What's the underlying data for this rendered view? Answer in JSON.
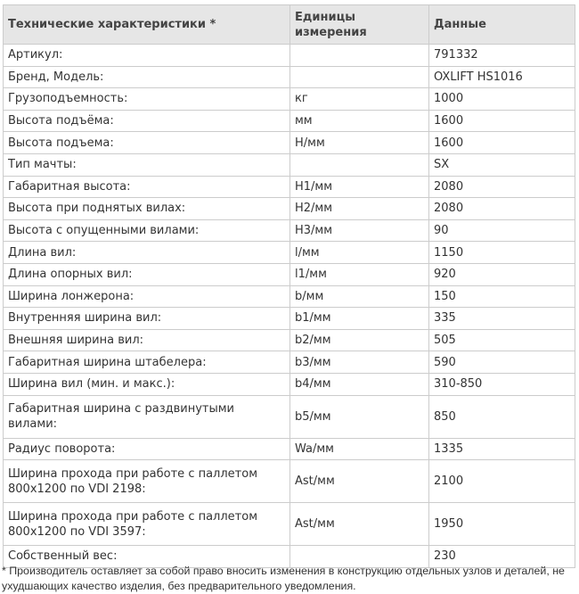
{
  "table": {
    "headers": [
      "Технические характеристики *",
      "Единицы измерения",
      "Данные"
    ],
    "rows": [
      {
        "name": "Артикул:",
        "unit": "",
        "value": "791332"
      },
      {
        "name": "Бренд, Модель:",
        "unit": "",
        "value": "OXLIFT HS1016"
      },
      {
        "name": "Грузоподъемность:",
        "unit": "кг",
        "value": "1000"
      },
      {
        "name": "Высота подъёма:",
        "unit": "мм",
        "value": "1600"
      },
      {
        "name": "Высота подъема:",
        "unit": "H/мм",
        "value": "1600"
      },
      {
        "name": "Тип мачты:",
        "unit": "",
        "value": "SX"
      },
      {
        "name": "Габаритная высота:",
        "unit": "H1/мм",
        "value": "2080"
      },
      {
        "name": "Высота при поднятых вилах:",
        "unit": "H2/мм",
        "value": "2080"
      },
      {
        "name": "Высота с опущенными вилами:",
        "unit": "H3/мм",
        "value": "90"
      },
      {
        "name": "Длина вил:",
        "unit": "l/мм",
        "value": "1150"
      },
      {
        "name": "Длина опорных вил:",
        "unit": "l1/мм",
        "value": "920"
      },
      {
        "name": "Ширина лонжерона:",
        "unit": "b/мм",
        "value": "150"
      },
      {
        "name": "Внутренняя ширина вил:",
        "unit": "b1/мм",
        "value": "335"
      },
      {
        "name": "Внешняя ширина вил:",
        "unit": "b2/мм",
        "value": "505"
      },
      {
        "name": "Габаритная ширина штабелера:",
        "unit": "b3/мм",
        "value": "590"
      },
      {
        "name": "Ширина вил (мин. и макс.):",
        "unit": "b4/мм",
        "value": "310-850"
      },
      {
        "name": "Габаритная ширина с раздвинутыми вилами:",
        "unit": "b5/мм",
        "value": "850"
      },
      {
        "name": "Радиус поворота:",
        "unit": "Wa/мм",
        "value": "1335"
      },
      {
        "name": "Ширина прохода при работе с паллетом 800x1200 по VDI 2198:",
        "unit": "Ast/мм",
        "value": "2100"
      },
      {
        "name": "Ширина прохода при работе с паллетом 800x1200 по VDI 3597:",
        "unit": "Ast/мм",
        "value": "1950"
      },
      {
        "name": "Собственный вес:",
        "unit": "",
        "value": "230"
      }
    ]
  },
  "footnote": "* Производитель оставляет за собой право вносить изменения в конструкцию отдельных узлов и деталей, не ухудшающих качество изделия, без предварительного уведомления."
}
